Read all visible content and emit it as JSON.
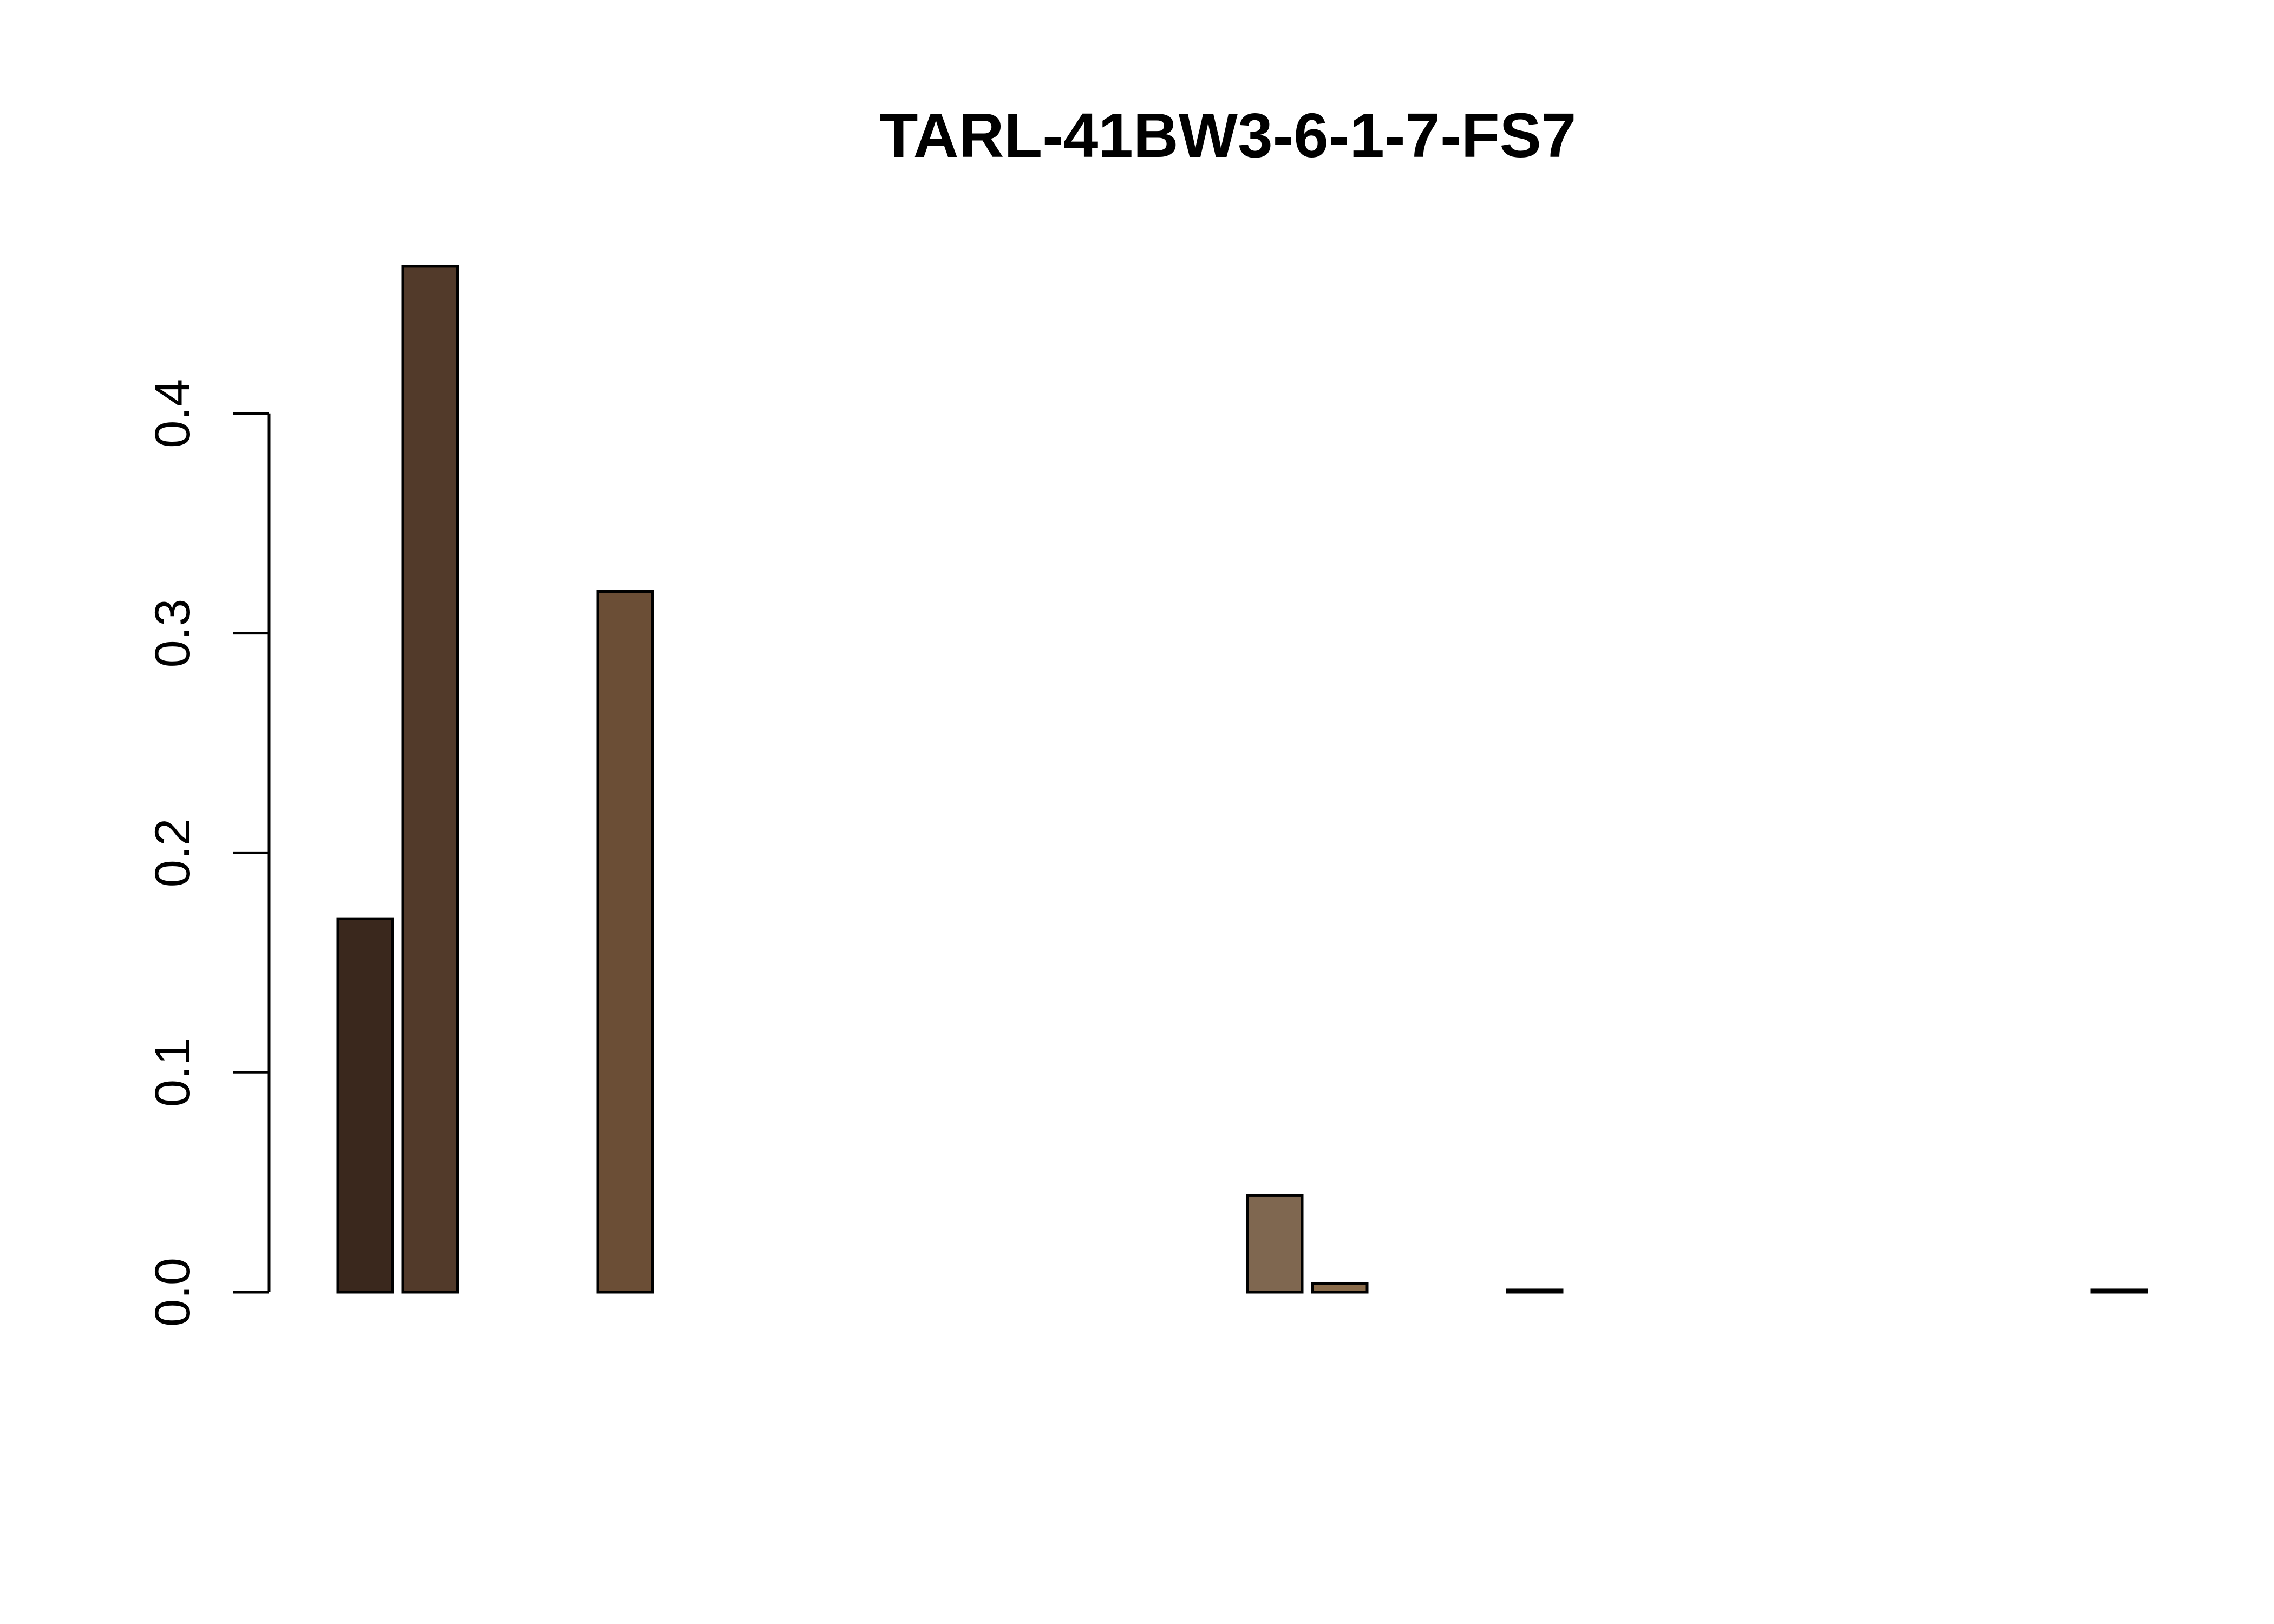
{
  "chart_data": {
    "type": "bar",
    "title": "TARL-41BW3-6-1-7-FS7",
    "xlabel": "",
    "ylabel": "",
    "ylim": [
      0,
      0.47
    ],
    "y_ticks": [
      "0.0",
      "0.1",
      "0.2",
      "0.3",
      "0.4"
    ],
    "y_tick_values": [
      0,
      0.1,
      0.2,
      0.3,
      0.4
    ],
    "grid": false,
    "legend": "none",
    "values": [
      0.17,
      0.467,
      0,
      0,
      0.319,
      0,
      0,
      0,
      0,
      0,
      0,
      0,
      0,
      0,
      0.044,
      0.004,
      0,
      0,
      0.001,
      0,
      0,
      0,
      0,
      0,
      0,
      0,
      0,
      0.001
    ],
    "colors": [
      "#3a281d",
      "#523a2a",
      "#5e4331",
      "#654836",
      "#6b4e36",
      "#6d5039",
      "#6f523b",
      "#71543e",
      "#735640",
      "#755842",
      "#775a44",
      "#795c46",
      "#7b5e48",
      "#7d604a",
      "#7f6750",
      "#8a6b4a",
      "#8b6e50",
      "#8d7052",
      "#8f7254",
      "#917456",
      "#937658",
      "#95785a",
      "#977a5c",
      "#997c5e",
      "#9b7e60",
      "#9d8062",
      "#9f8264",
      "#7a5a3c"
    ]
  }
}
